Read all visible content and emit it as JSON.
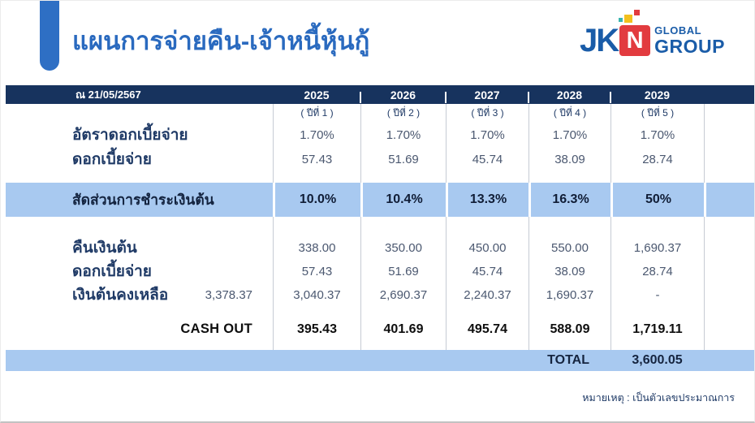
{
  "slide": {
    "title": "แผนการจ่ายคืน-เจ้าหนี้หุ้นกู้",
    "footnote": "หมายเหตุ : เป็นตัวเลขประมาณการ"
  },
  "logo": {
    "jk": "JK",
    "n": "N",
    "global": "GLOBAL",
    "group": "GROUP"
  },
  "colors": {
    "header_navy": "#17335E",
    "band_blue": "#A8C9F0",
    "accent_blue": "#2E6FC4",
    "title_blue": "#2A6ABF",
    "logo_blue": "#1A5CA8",
    "logo_red": "#E23B3F",
    "logo_yellow": "#F3C01D",
    "logo_teal": "#3AB5AE"
  },
  "table": {
    "as_of": "ณ 21/05/2567",
    "years": [
      "2025",
      "2026",
      "2027",
      "2028",
      "2029"
    ],
    "year_subtitles": [
      "( ปีที่ 1 )",
      "( ปีที่ 2 )",
      "( ปีที่ 3 )",
      "( ปีที่ 4 )",
      "( ปีที่ 5 )"
    ],
    "rows": {
      "interest_rate": {
        "label": "อัตราดอกเบี้ยจ่าย",
        "values": [
          "1.70%",
          "1.70%",
          "1.70%",
          "1.70%",
          "1.70%"
        ]
      },
      "interest_paid": {
        "label": "ดอกเบี้ยจ่าย",
        "values": [
          "57.43",
          "51.69",
          "45.74",
          "38.09",
          "28.74"
        ]
      },
      "principal_ratio": {
        "label": "สัดส่วนการชำระเงินต้น",
        "values": [
          "10.0%",
          "10.4%",
          "13.3%",
          "16.3%",
          "50%"
        ]
      },
      "principal_return": {
        "label": "คืนเงินต้น",
        "values": [
          "338.00",
          "350.00",
          "450.00",
          "550.00",
          "1,690.37"
        ]
      },
      "interest_paid_2": {
        "label": "ดอกเบี้ยจ่าย",
        "values": [
          "57.43",
          "51.69",
          "45.74",
          "38.09",
          "28.74"
        ]
      },
      "principal_remaining": {
        "label": "เงินต้นคงเหลือ",
        "opening_balance": "3,378.37",
        "values": [
          "3,040.37",
          "2,690.37",
          "2,240.37",
          "1,690.37",
          "-"
        ]
      },
      "cash_out": {
        "label": "CASH OUT",
        "values": [
          "395.43",
          "401.69",
          "495.74",
          "588.09",
          "1,719.11"
        ]
      },
      "total": {
        "label": "TOTAL",
        "value": "3,600.05"
      }
    }
  }
}
